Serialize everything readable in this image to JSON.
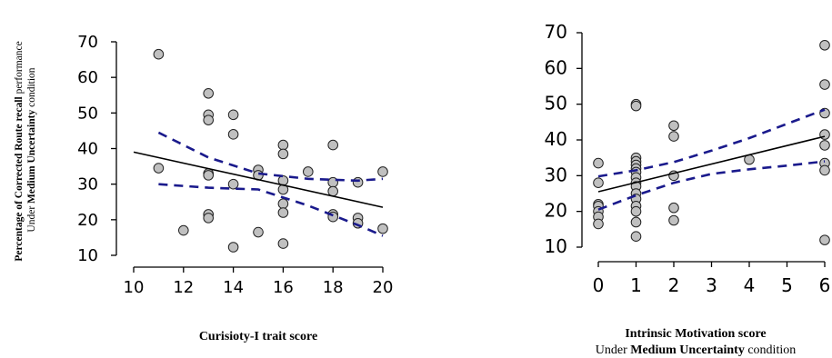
{
  "chart_data": [
    {
      "type": "scatter",
      "ylabel_line1_bold": "Percentage of Corrected Route recall",
      "ylabel_line1_rest": " performance",
      "ylabel_line2_pre": "Under ",
      "ylabel_line2_bold": "Medium Uncertainty",
      "ylabel_line2_post": " condition",
      "xlabel": "Curisioty-I trait score",
      "xlim": [
        10,
        20
      ],
      "ylim": [
        10,
        70
      ],
      "xticks": [
        10,
        12,
        14,
        16,
        18,
        20
      ],
      "yticks": [
        10,
        20,
        30,
        40,
        50,
        60,
        70
      ],
      "points": [
        [
          11,
          66.5
        ],
        [
          11,
          34.5
        ],
        [
          12,
          17
        ],
        [
          13,
          55.5
        ],
        [
          13,
          49.5
        ],
        [
          13,
          48
        ],
        [
          13,
          33
        ],
        [
          13,
          32.5
        ],
        [
          13,
          21.5
        ],
        [
          13,
          20.5
        ],
        [
          14,
          49.5
        ],
        [
          14,
          44
        ],
        [
          14,
          30
        ],
        [
          14,
          12.3
        ],
        [
          15,
          34
        ],
        [
          15,
          32.5
        ],
        [
          15,
          16.5
        ],
        [
          16,
          41
        ],
        [
          16,
          38.5
        ],
        [
          16,
          31
        ],
        [
          16,
          28.5
        ],
        [
          16,
          24.5
        ],
        [
          16,
          22
        ],
        [
          16,
          13.3
        ],
        [
          17,
          33.5
        ],
        [
          18,
          41
        ],
        [
          18,
          30.5
        ],
        [
          18,
          28
        ],
        [
          18,
          21.5
        ],
        [
          18,
          20.8
        ],
        [
          19,
          30.5
        ],
        [
          19,
          20.5
        ],
        [
          19,
          19
        ],
        [
          20,
          33.5
        ],
        [
          20,
          17.5
        ]
      ],
      "fit": {
        "x": [
          10,
          20
        ],
        "y": [
          39,
          23.5
        ]
      },
      "ci_upper": {
        "x": [
          11,
          13,
          15,
          17,
          19,
          20
        ],
        "y": [
          44.5,
          37.5,
          33,
          31.5,
          31,
          31.5
        ]
      },
      "ci_lower": {
        "x": [
          11,
          13,
          15,
          17,
          19,
          20
        ],
        "y": [
          30,
          29,
          28.5,
          24,
          18.5,
          15.5
        ]
      }
    },
    {
      "type": "scatter",
      "xlabel_bold": "Intrinsic Motivation score",
      "sublabel_pre": "Under ",
      "sublabel_bold": "Medium Uncertainty",
      "sublabel_post": " condition",
      "xlim": [
        0,
        6
      ],
      "ylim": [
        10,
        70
      ],
      "xticks": [
        0,
        1,
        2,
        3,
        4,
        5,
        6
      ],
      "yticks": [
        10,
        20,
        30,
        40,
        50,
        60,
        70
      ],
      "points": [
        [
          0,
          33.5
        ],
        [
          0,
          28
        ],
        [
          0,
          22
        ],
        [
          0,
          21.5
        ],
        [
          0,
          20
        ],
        [
          0,
          18.5
        ],
        [
          0,
          16.5
        ],
        [
          1,
          50
        ],
        [
          1,
          49.5
        ],
        [
          1,
          35
        ],
        [
          1,
          34
        ],
        [
          1,
          33
        ],
        [
          1,
          32
        ],
        [
          1,
          31
        ],
        [
          1,
          29.5
        ],
        [
          1,
          28
        ],
        [
          1,
          27
        ],
        [
          1,
          25
        ],
        [
          1,
          23.5
        ],
        [
          1,
          21.5
        ],
        [
          1,
          20
        ],
        [
          1,
          17
        ],
        [
          1,
          13
        ],
        [
          2,
          44
        ],
        [
          2,
          41
        ],
        [
          2,
          30
        ],
        [
          2,
          21
        ],
        [
          2,
          17.5
        ],
        [
          4,
          34.5
        ],
        [
          6,
          66.5
        ],
        [
          6,
          55.5
        ],
        [
          6,
          47.5
        ],
        [
          6,
          41.5
        ],
        [
          6,
          38.5
        ],
        [
          6,
          33.5
        ],
        [
          6,
          31.5
        ],
        [
          6,
          12
        ]
      ],
      "fit": {
        "x": [
          0,
          6
        ],
        "y": [
          25.5,
          41
        ]
      },
      "ci_upper": {
        "x": [
          0,
          1,
          2,
          3,
          4,
          5,
          6
        ],
        "y": [
          29.8,
          31.5,
          33.8,
          37,
          40.5,
          44.5,
          48.5
        ]
      },
      "ci_lower": {
        "x": [
          0,
          1,
          2,
          3,
          4,
          5,
          6
        ],
        "y": [
          20.5,
          24.5,
          28,
          30.5,
          31.8,
          32.8,
          34
        ]
      }
    }
  ]
}
